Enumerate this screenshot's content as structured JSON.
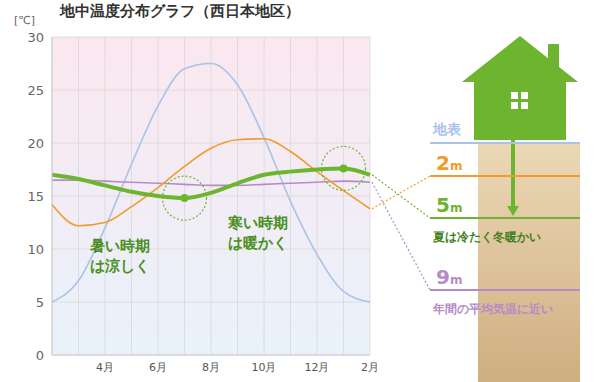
{
  "chart_data": {
    "type": "line",
    "title": "地中温度分布グラフ（西日本地区）",
    "y_label": "[℃]",
    "categories": [
      null,
      null,
      "4月",
      null,
      "6月",
      null,
      "8月",
      null,
      "10月",
      null,
      "12月",
      null,
      "2月"
    ],
    "series": [
      {
        "name": "地表",
        "color": "#a9c3e7",
        "values": [
          5,
          7,
          12,
          18,
          23.5,
          27,
          27.5,
          25.5,
          20.5,
          14.5,
          9.5,
          6,
          5
        ]
      },
      {
        "name": "9m",
        "color": "#b58cc8",
        "values": [
          16.5,
          16.5,
          16.4,
          16.3,
          16.2,
          16.1,
          16,
          16,
          16.1,
          16.2,
          16.3,
          16.4,
          16.3
        ]
      },
      {
        "name": "2m",
        "color": "#f39a2b",
        "values": [
          14.2,
          12.2,
          12.5,
          14,
          15.8,
          17.8,
          19.5,
          20.3,
          20.4,
          19.2,
          17.3,
          15.5,
          13.8
        ]
      },
      {
        "name": "5m",
        "color": "#6db52f",
        "values": [
          17,
          16.6,
          16,
          15.4,
          15,
          14.8,
          15.3,
          16.2,
          17,
          17.3,
          17.5,
          17.6,
          17
        ]
      }
    ],
    "ylim": [
      0,
      30
    ],
    "yticks": [
      0,
      5,
      10,
      15,
      20,
      25,
      30
    ],
    "grid": true,
    "legend": "right",
    "annotations": [
      {
        "lines": [
          "暑い時期",
          "は涼しく"
        ]
      },
      {
        "lines": [
          "寒い時期",
          "は暖かく"
        ]
      },
      {
        "text": "夏は冷たく冬暖かい",
        "series": "5m"
      },
      {
        "text": "年間の平均気温に近い",
        "series": "9m"
      }
    ]
  }
}
